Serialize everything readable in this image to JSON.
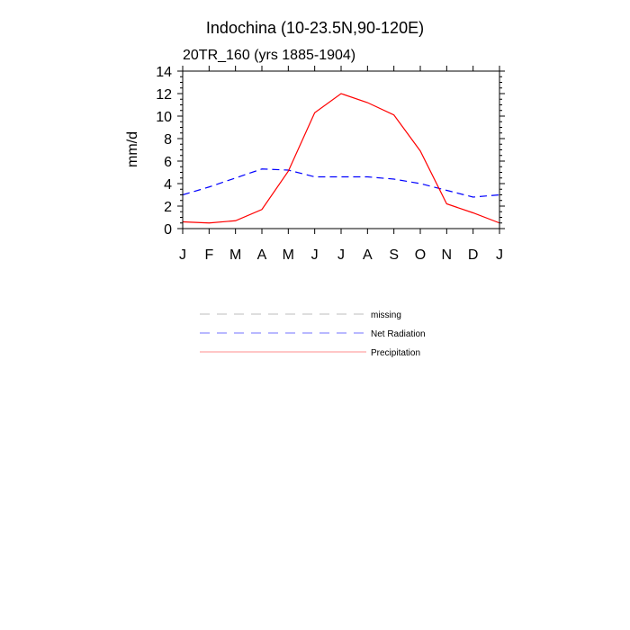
{
  "chart_data": {
    "type": "line",
    "title": "Indochina (10-23.5N,90-120E)",
    "subtitle": "20TR_160 (yrs 1885-1904)",
    "xlabel": "",
    "ylabel": "mm/d",
    "ylim": [
      0,
      14
    ],
    "yticks": [
      0,
      2,
      4,
      6,
      8,
      10,
      12,
      14
    ],
    "categories": [
      "J",
      "F",
      "M",
      "A",
      "M",
      "J",
      "J",
      "A",
      "S",
      "O",
      "N",
      "D",
      "J"
    ],
    "series": [
      {
        "name": "Net Radiation",
        "color": "#0000ff",
        "dash": "dashed",
        "values": [
          3.0,
          3.7,
          4.5,
          5.3,
          5.2,
          4.6,
          4.6,
          4.6,
          4.4,
          4.0,
          3.4,
          2.8,
          3.0
        ]
      },
      {
        "name": "Precipitation",
        "color": "#ff0000",
        "dash": "solid",
        "values": [
          0.6,
          0.5,
          0.7,
          1.7,
          5.1,
          10.3,
          12.0,
          11.2,
          10.1,
          6.9,
          2.2,
          1.4,
          0.5
        ]
      }
    ],
    "legend": [
      {
        "label": "missing",
        "color": "#888888",
        "dash": "dashed"
      },
      {
        "label": "Net Radiation",
        "color": "#0000ff",
        "dash": "dashed"
      },
      {
        "label": "Precipitation",
        "color": "#ff0000",
        "dash": "solid"
      }
    ],
    "legend_position": "below"
  }
}
